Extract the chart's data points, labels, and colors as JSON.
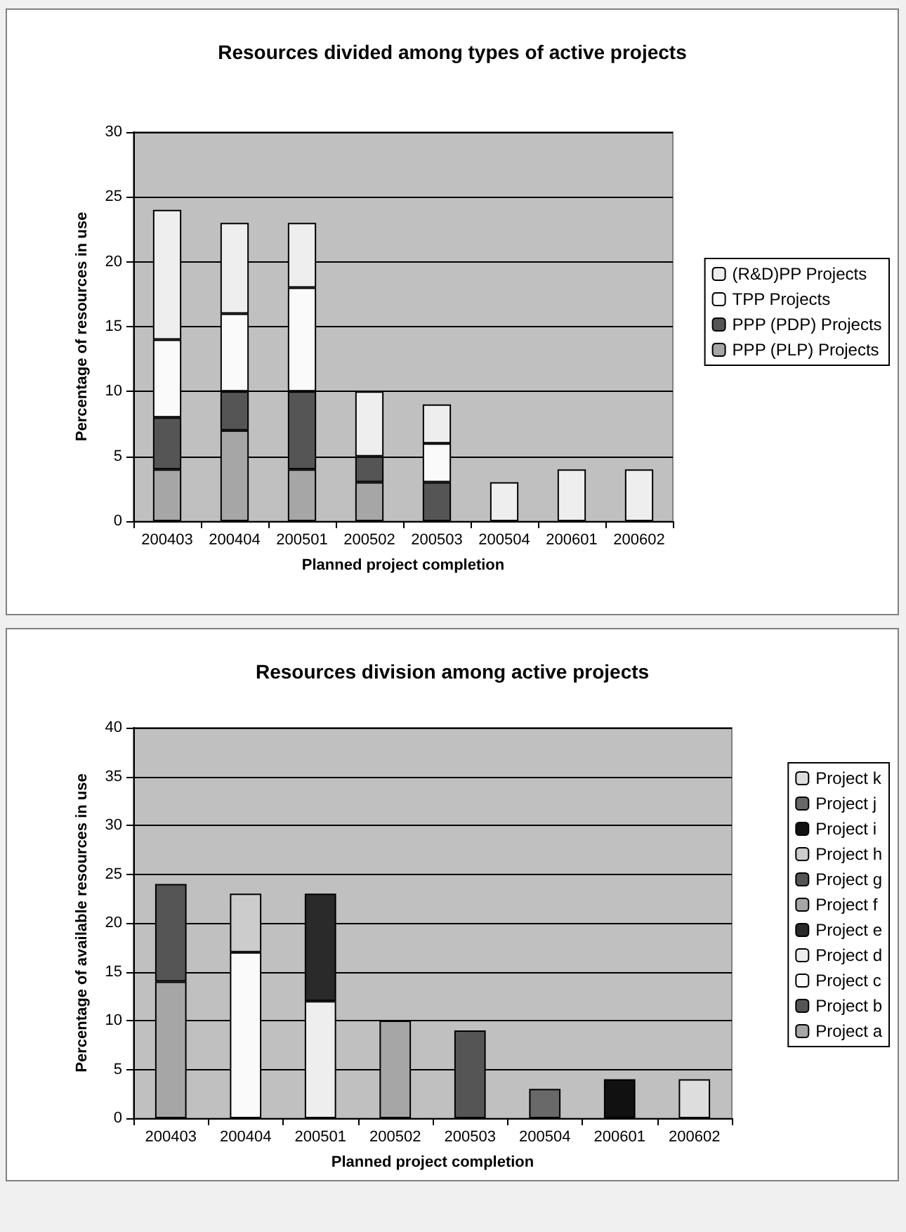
{
  "chart_data": [
    {
      "type": "bar",
      "title": "Resources divided among types of active projects",
      "xlabel": "Planned project completion",
      "ylabel": "Percentage of resources in use",
      "categories": [
        "200403",
        "200404",
        "200501",
        "200502",
        "200503",
        "200504",
        "200601",
        "200602"
      ],
      "stacked": true,
      "ylim": [
        0,
        30
      ],
      "yticks": [
        0,
        5,
        10,
        15,
        20,
        25,
        30
      ],
      "grid": "y",
      "legend": "right",
      "series": [
        {
          "name": "PPP (PLP) Projects",
          "color": "#a6a6a6",
          "values": [
            4,
            7,
            4,
            3,
            null,
            null,
            null,
            null
          ]
        },
        {
          "name": "PPP (PDP) Projects",
          "color": "#555555",
          "values": [
            4,
            3,
            6,
            2,
            3,
            null,
            null,
            null
          ]
        },
        {
          "name": "TPP Projects",
          "color": "#fafafa",
          "values": [
            6,
            6,
            8,
            null,
            3,
            null,
            null,
            null
          ]
        },
        {
          "name": "(R&D)PP Projects",
          "color": "#eeeeee",
          "values": [
            10,
            7,
            5,
            5,
            3,
            3,
            4,
            4
          ]
        }
      ]
    },
    {
      "type": "bar",
      "title": "Resources division among active projects",
      "xlabel": "Planned project completion",
      "ylabel": "Percentage of available resources in use",
      "categories": [
        "200403",
        "200404",
        "200501",
        "200502",
        "200503",
        "200504",
        "200601",
        "200602"
      ],
      "stacked": true,
      "ylim": [
        0,
        40
      ],
      "yticks": [
        0,
        5,
        10,
        15,
        20,
        25,
        30,
        35,
        40
      ],
      "grid": "y",
      "legend": "right",
      "series": [
        {
          "name": "Project a",
          "color": "#a6a6a6",
          "values": [
            14,
            null,
            null,
            null,
            null,
            null,
            null,
            null
          ]
        },
        {
          "name": "Project b",
          "color": "#555555",
          "values": [
            10,
            null,
            null,
            null,
            null,
            null,
            null,
            null
          ]
        },
        {
          "name": "Project c",
          "color": "#fafafa",
          "values": [
            null,
            17,
            null,
            null,
            null,
            null,
            null,
            null
          ]
        },
        {
          "name": "Project d",
          "color": "#eeeeee",
          "values": [
            null,
            null,
            12,
            null,
            null,
            null,
            null,
            null
          ]
        },
        {
          "name": "Project e",
          "color": "#2a2a2a",
          "values": [
            null,
            null,
            11,
            null,
            null,
            null,
            null,
            null
          ]
        },
        {
          "name": "Project f",
          "color": "#a6a6a6",
          "values": [
            null,
            null,
            null,
            10,
            null,
            null,
            null,
            null
          ]
        },
        {
          "name": "Project g",
          "color": "#555555",
          "values": [
            null,
            null,
            null,
            null,
            9,
            null,
            null,
            null
          ]
        },
        {
          "name": "Project h",
          "color": "#cccccc",
          "values": [
            null,
            6,
            null,
            null,
            null,
            null,
            null,
            null
          ]
        },
        {
          "name": "Project i",
          "color": "#111111",
          "values": [
            null,
            null,
            null,
            null,
            null,
            null,
            4,
            null
          ]
        },
        {
          "name": "Project j",
          "color": "#696969",
          "values": [
            null,
            null,
            null,
            null,
            null,
            3,
            null,
            null
          ]
        },
        {
          "name": "Project k",
          "color": "#dddddd",
          "values": [
            null,
            null,
            null,
            null,
            null,
            null,
            null,
            4
          ]
        }
      ]
    }
  ]
}
